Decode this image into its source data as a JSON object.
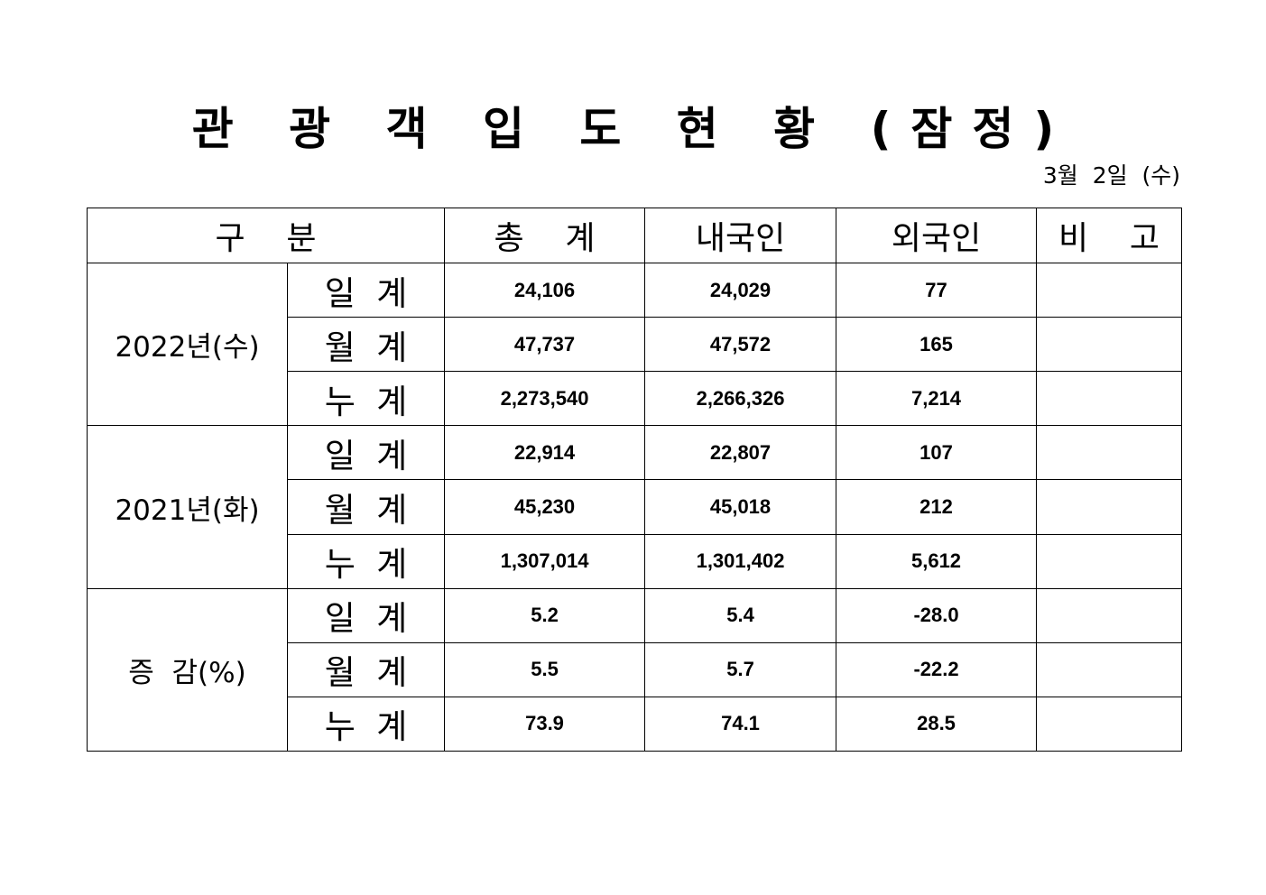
{
  "title": "관 광 객 입 도 현 황 (잠정)",
  "date": "3월  2일  (수)",
  "headers": {
    "category": "구    분",
    "total": "총    계",
    "domestic": "내국인",
    "foreign": "외국인",
    "remarks": "비    고"
  },
  "groups": [
    {
      "label": "2022년(수)",
      "rows": [
        {
          "label": "일  계",
          "total": "24,106",
          "domestic": "24,029",
          "foreign": "77",
          "remarks": ""
        },
        {
          "label": "월  계",
          "total": "47,737",
          "domestic": "47,572",
          "foreign": "165",
          "remarks": ""
        },
        {
          "label": "누  계",
          "total": "2,273,540",
          "domestic": "2,266,326",
          "foreign": "7,214",
          "remarks": ""
        }
      ]
    },
    {
      "label": "2021년(화)",
      "rows": [
        {
          "label": "일  계",
          "total": "22,914",
          "domestic": "22,807",
          "foreign": "107",
          "remarks": ""
        },
        {
          "label": "월  계",
          "total": "45,230",
          "domestic": "45,018",
          "foreign": "212",
          "remarks": ""
        },
        {
          "label": "누  계",
          "total": "1,307,014",
          "domestic": "1,301,402",
          "foreign": "5,612",
          "remarks": ""
        }
      ]
    },
    {
      "label": "증  감(%)",
      "rows": [
        {
          "label": "일  계",
          "total": "5.2",
          "domestic": "5.4",
          "foreign": "-28.0",
          "remarks": ""
        },
        {
          "label": "월  계",
          "total": "5.5",
          "domestic": "5.7",
          "foreign": "-22.2",
          "remarks": ""
        },
        {
          "label": "누  계",
          "total": "73.9",
          "domestic": "74.1",
          "foreign": "28.5",
          "remarks": ""
        }
      ]
    }
  ]
}
